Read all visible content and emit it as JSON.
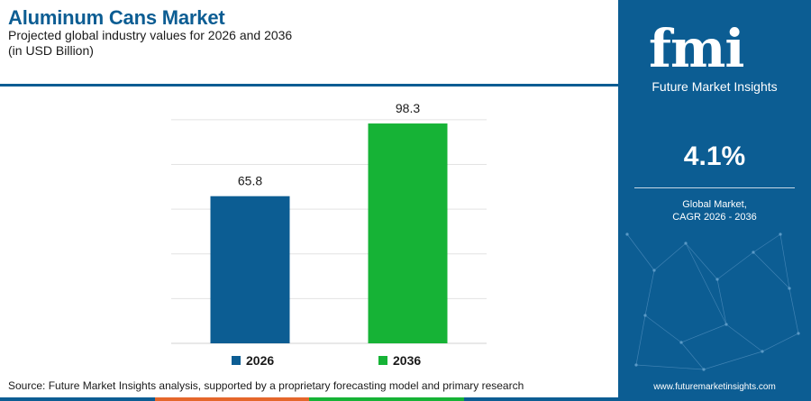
{
  "header": {
    "title": "Aluminum Cans Market",
    "subtitle_line1": "Projected global industry values for 2026 and 2036",
    "subtitle_line2": "(in USD Billion)"
  },
  "chart_data": {
    "type": "bar",
    "categories": [
      "2026",
      "2036"
    ],
    "values": [
      65.8,
      98.3
    ],
    "data_labels": [
      "65.8",
      "98.3"
    ],
    "colors": [
      "#0c5d93",
      "#16b336"
    ],
    "ylim": [
      0,
      110
    ],
    "grid": true,
    "legend": "bottom",
    "legend_entries": [
      "2026",
      "2036"
    ],
    "xlabel": "",
    "ylabel": ""
  },
  "source": "Source: Future Market Insights analysis, supported by a proprietary forecasting model and primary research",
  "footer_colors": [
    "#0c5d93",
    "#e5672b",
    "#16b336",
    "#0c5d93"
  ],
  "sidebar": {
    "logo_letters": "fmi",
    "logo_name": "Future Market Insights",
    "cagr_value": "4.1%",
    "cagr_label_line1": "Global Market,",
    "cagr_label_line2": "CAGR 2026 - 2036",
    "website": "www.futuremarketinsights.com",
    "background_color": "#0c5d93"
  }
}
